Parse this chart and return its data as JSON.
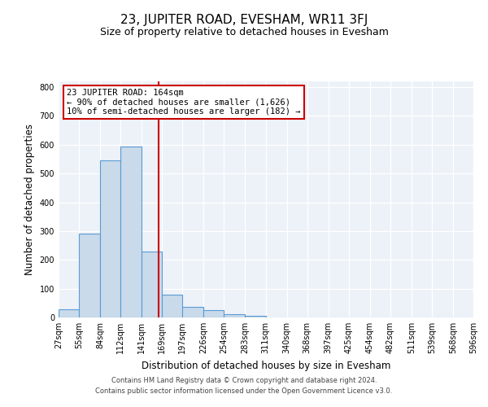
{
  "title": "23, JUPITER ROAD, EVESHAM, WR11 3FJ",
  "subtitle": "Size of property relative to detached houses in Evesham",
  "xlabel": "Distribution of detached houses by size in Evesham",
  "ylabel": "Number of detached properties",
  "bar_values": [
    28,
    291,
    547,
    594,
    228,
    78,
    37,
    25,
    10,
    5,
    0,
    0,
    0,
    0,
    0,
    0,
    0,
    0,
    0,
    0
  ],
  "bin_labels": [
    "27sqm",
    "55sqm",
    "84sqm",
    "112sqm",
    "141sqm",
    "169sqm",
    "197sqm",
    "226sqm",
    "254sqm",
    "283sqm",
    "311sqm",
    "340sqm",
    "368sqm",
    "397sqm",
    "425sqm",
    "454sqm",
    "482sqm",
    "511sqm",
    "539sqm",
    "568sqm",
    "596sqm"
  ],
  "bin_edges": [
    27,
    55,
    84,
    112,
    141,
    169,
    197,
    226,
    254,
    283,
    311,
    340,
    368,
    397,
    425,
    454,
    482,
    511,
    539,
    568,
    596
  ],
  "bar_color": "#c9daea",
  "bar_edge_color": "#5b9bd5",
  "vline_x": 164,
  "vline_color": "#cc0000",
  "annotation_line1": "23 JUPITER ROAD: 164sqm",
  "annotation_line2": "← 90% of detached houses are smaller (1,626)",
  "annotation_line3": "10% of semi-detached houses are larger (182) →",
  "annotation_box_color": "#ffffff",
  "annotation_box_edge_color": "#cc0000",
  "ylim": [
    0,
    820
  ],
  "yticks": [
    0,
    100,
    200,
    300,
    400,
    500,
    600,
    700,
    800
  ],
  "background_color": "#edf2f8",
  "footer_line1": "Contains HM Land Registry data © Crown copyright and database right 2024.",
  "footer_line2": "Contains public sector information licensed under the Open Government Licence v3.0.",
  "title_fontsize": 11,
  "subtitle_fontsize": 9,
  "axis_label_fontsize": 8.5,
  "tick_fontsize": 7,
  "annotation_fontsize": 7.5,
  "footer_fontsize": 6
}
